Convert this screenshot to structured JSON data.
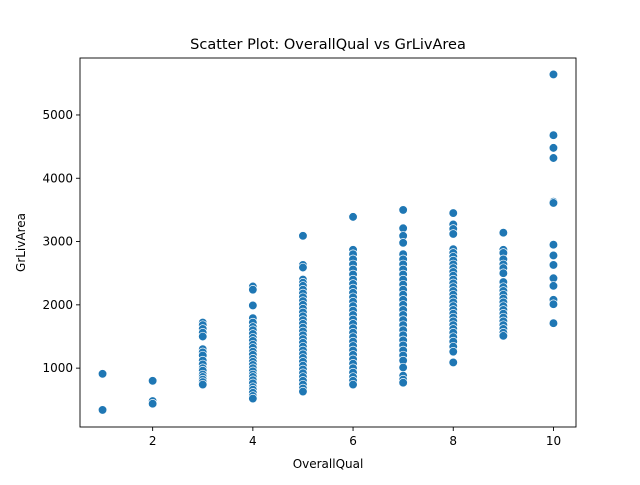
{
  "chart_data": {
    "type": "scatter",
    "title": "Scatter Plot: OverallQual vs GrLivArea",
    "xlabel": "OverallQual",
    "ylabel": "GrLivArea",
    "xlim": [
      0.55,
      10.45
    ],
    "ylim": [
      70,
      5900
    ],
    "xticks": [
      "2",
      "4",
      "6",
      "8",
      "10"
    ],
    "yticks": [
      "1000",
      "2000",
      "3000",
      "4000",
      "5000"
    ],
    "grid": false,
    "legend": "none",
    "marker_color": "#1f77b4",
    "marker_edge_color": "#ffffff",
    "points": [
      {
        "x": 1,
        "y": 910
      },
      {
        "x": 1,
        "y": 340
      },
      {
        "x": 2,
        "y": 800
      },
      {
        "x": 2,
        "y": 480
      },
      {
        "x": 2,
        "y": 438
      },
      {
        "x": 3,
        "y": 1720
      },
      {
        "x": 3,
        "y": 1680
      },
      {
        "x": 3,
        "y": 1620
      },
      {
        "x": 3,
        "y": 1560
      },
      {
        "x": 3,
        "y": 1500
      },
      {
        "x": 3,
        "y": 1300
      },
      {
        "x": 3,
        "y": 1250
      },
      {
        "x": 3,
        "y": 1200
      },
      {
        "x": 3,
        "y": 1120
      },
      {
        "x": 3,
        "y": 1060
      },
      {
        "x": 3,
        "y": 1000
      },
      {
        "x": 3,
        "y": 960
      },
      {
        "x": 3,
        "y": 900
      },
      {
        "x": 3,
        "y": 860
      },
      {
        "x": 3,
        "y": 820
      },
      {
        "x": 3,
        "y": 780
      },
      {
        "x": 3,
        "y": 740
      },
      {
        "x": 4,
        "y": 2290
      },
      {
        "x": 4,
        "y": 2240
      },
      {
        "x": 4,
        "y": 1990
      },
      {
        "x": 4,
        "y": 1790
      },
      {
        "x": 4,
        "y": 1720
      },
      {
        "x": 4,
        "y": 1650
      },
      {
        "x": 4,
        "y": 1600
      },
      {
        "x": 4,
        "y": 1540
      },
      {
        "x": 4,
        "y": 1480
      },
      {
        "x": 4,
        "y": 1430
      },
      {
        "x": 4,
        "y": 1370
      },
      {
        "x": 4,
        "y": 1320
      },
      {
        "x": 4,
        "y": 1260
      },
      {
        "x": 4,
        "y": 1210
      },
      {
        "x": 4,
        "y": 1150
      },
      {
        "x": 4,
        "y": 1100
      },
      {
        "x": 4,
        "y": 1050
      },
      {
        "x": 4,
        "y": 1000
      },
      {
        "x": 4,
        "y": 950
      },
      {
        "x": 4,
        "y": 900
      },
      {
        "x": 4,
        "y": 860
      },
      {
        "x": 4,
        "y": 810
      },
      {
        "x": 4,
        "y": 760
      },
      {
        "x": 4,
        "y": 700
      },
      {
        "x": 4,
        "y": 660
      },
      {
        "x": 4,
        "y": 610
      },
      {
        "x": 4,
        "y": 560
      },
      {
        "x": 4,
        "y": 520
      },
      {
        "x": 5,
        "y": 3090
      },
      {
        "x": 5,
        "y": 2630
      },
      {
        "x": 5,
        "y": 2590
      },
      {
        "x": 5,
        "y": 2400
      },
      {
        "x": 5,
        "y": 2350
      },
      {
        "x": 5,
        "y": 2300
      },
      {
        "x": 5,
        "y": 2240
      },
      {
        "x": 5,
        "y": 2180
      },
      {
        "x": 5,
        "y": 2120
      },
      {
        "x": 5,
        "y": 2060
      },
      {
        "x": 5,
        "y": 2000
      },
      {
        "x": 5,
        "y": 1940
      },
      {
        "x": 5,
        "y": 1880
      },
      {
        "x": 5,
        "y": 1820
      },
      {
        "x": 5,
        "y": 1760
      },
      {
        "x": 5,
        "y": 1700
      },
      {
        "x": 5,
        "y": 1640
      },
      {
        "x": 5,
        "y": 1580
      },
      {
        "x": 5,
        "y": 1520
      },
      {
        "x": 5,
        "y": 1460
      },
      {
        "x": 5,
        "y": 1400
      },
      {
        "x": 5,
        "y": 1340
      },
      {
        "x": 5,
        "y": 1280
      },
      {
        "x": 5,
        "y": 1220
      },
      {
        "x": 5,
        "y": 1160
      },
      {
        "x": 5,
        "y": 1100
      },
      {
        "x": 5,
        "y": 1040
      },
      {
        "x": 5,
        "y": 980
      },
      {
        "x": 5,
        "y": 920
      },
      {
        "x": 5,
        "y": 860
      },
      {
        "x": 5,
        "y": 800
      },
      {
        "x": 5,
        "y": 740
      },
      {
        "x": 5,
        "y": 680
      },
      {
        "x": 5,
        "y": 630
      },
      {
        "x": 6,
        "y": 3390
      },
      {
        "x": 6,
        "y": 2870
      },
      {
        "x": 6,
        "y": 2800
      },
      {
        "x": 6,
        "y": 2720
      },
      {
        "x": 6,
        "y": 2640
      },
      {
        "x": 6,
        "y": 2560
      },
      {
        "x": 6,
        "y": 2480
      },
      {
        "x": 6,
        "y": 2400
      },
      {
        "x": 6,
        "y": 2330
      },
      {
        "x": 6,
        "y": 2260
      },
      {
        "x": 6,
        "y": 2190
      },
      {
        "x": 6,
        "y": 2120
      },
      {
        "x": 6,
        "y": 2050
      },
      {
        "x": 6,
        "y": 1980
      },
      {
        "x": 6,
        "y": 1910
      },
      {
        "x": 6,
        "y": 1840
      },
      {
        "x": 6,
        "y": 1770
      },
      {
        "x": 6,
        "y": 1700
      },
      {
        "x": 6,
        "y": 1630
      },
      {
        "x": 6,
        "y": 1560
      },
      {
        "x": 6,
        "y": 1490
      },
      {
        "x": 6,
        "y": 1420
      },
      {
        "x": 6,
        "y": 1350
      },
      {
        "x": 6,
        "y": 1280
      },
      {
        "x": 6,
        "y": 1210
      },
      {
        "x": 6,
        "y": 1140
      },
      {
        "x": 6,
        "y": 1070
      },
      {
        "x": 6,
        "y": 1000
      },
      {
        "x": 6,
        "y": 930
      },
      {
        "x": 6,
        "y": 860
      },
      {
        "x": 6,
        "y": 800
      },
      {
        "x": 6,
        "y": 740
      },
      {
        "x": 7,
        "y": 3500
      },
      {
        "x": 7,
        "y": 3210
      },
      {
        "x": 7,
        "y": 3090
      },
      {
        "x": 7,
        "y": 2980
      },
      {
        "x": 7,
        "y": 2800
      },
      {
        "x": 7,
        "y": 2720
      },
      {
        "x": 7,
        "y": 2640
      },
      {
        "x": 7,
        "y": 2560
      },
      {
        "x": 7,
        "y": 2480
      },
      {
        "x": 7,
        "y": 2400
      },
      {
        "x": 7,
        "y": 2320
      },
      {
        "x": 7,
        "y": 2240
      },
      {
        "x": 7,
        "y": 2160
      },
      {
        "x": 7,
        "y": 2080
      },
      {
        "x": 7,
        "y": 2000
      },
      {
        "x": 7,
        "y": 1920
      },
      {
        "x": 7,
        "y": 1840
      },
      {
        "x": 7,
        "y": 1760
      },
      {
        "x": 7,
        "y": 1680
      },
      {
        "x": 7,
        "y": 1600
      },
      {
        "x": 7,
        "y": 1520
      },
      {
        "x": 7,
        "y": 1440
      },
      {
        "x": 7,
        "y": 1360
      },
      {
        "x": 7,
        "y": 1280
      },
      {
        "x": 7,
        "y": 1200
      },
      {
        "x": 7,
        "y": 1120
      },
      {
        "x": 7,
        "y": 1010
      },
      {
        "x": 7,
        "y": 880
      },
      {
        "x": 7,
        "y": 820
      },
      {
        "x": 7,
        "y": 770
      },
      {
        "x": 8,
        "y": 3450
      },
      {
        "x": 8,
        "y": 3270
      },
      {
        "x": 8,
        "y": 3200
      },
      {
        "x": 8,
        "y": 3120
      },
      {
        "x": 8,
        "y": 2880
      },
      {
        "x": 8,
        "y": 2820
      },
      {
        "x": 8,
        "y": 2760
      },
      {
        "x": 8,
        "y": 2700
      },
      {
        "x": 8,
        "y": 2640
      },
      {
        "x": 8,
        "y": 2580
      },
      {
        "x": 8,
        "y": 2520
      },
      {
        "x": 8,
        "y": 2460
      },
      {
        "x": 8,
        "y": 2400
      },
      {
        "x": 8,
        "y": 2340
      },
      {
        "x": 8,
        "y": 2280
      },
      {
        "x": 8,
        "y": 2220
      },
      {
        "x": 8,
        "y": 2160
      },
      {
        "x": 8,
        "y": 2100
      },
      {
        "x": 8,
        "y": 2040
      },
      {
        "x": 8,
        "y": 1980
      },
      {
        "x": 8,
        "y": 1920
      },
      {
        "x": 8,
        "y": 1860
      },
      {
        "x": 8,
        "y": 1800
      },
      {
        "x": 8,
        "y": 1740
      },
      {
        "x": 8,
        "y": 1680
      },
      {
        "x": 8,
        "y": 1620
      },
      {
        "x": 8,
        "y": 1560
      },
      {
        "x": 8,
        "y": 1490
      },
      {
        "x": 8,
        "y": 1420
      },
      {
        "x": 8,
        "y": 1340
      },
      {
        "x": 8,
        "y": 1260
      },
      {
        "x": 8,
        "y": 1090
      },
      {
        "x": 9,
        "y": 3140
      },
      {
        "x": 9,
        "y": 2870
      },
      {
        "x": 9,
        "y": 2820
      },
      {
        "x": 9,
        "y": 2720
      },
      {
        "x": 9,
        "y": 2640
      },
      {
        "x": 9,
        "y": 2580
      },
      {
        "x": 9,
        "y": 2500
      },
      {
        "x": 9,
        "y": 2360
      },
      {
        "x": 9,
        "y": 2280
      },
      {
        "x": 9,
        "y": 2220
      },
      {
        "x": 9,
        "y": 2160
      },
      {
        "x": 9,
        "y": 2100
      },
      {
        "x": 9,
        "y": 2040
      },
      {
        "x": 9,
        "y": 1980
      },
      {
        "x": 9,
        "y": 1920
      },
      {
        "x": 9,
        "y": 1860
      },
      {
        "x": 9,
        "y": 1800
      },
      {
        "x": 9,
        "y": 1740
      },
      {
        "x": 9,
        "y": 1680
      },
      {
        "x": 9,
        "y": 1620
      },
      {
        "x": 9,
        "y": 1560
      },
      {
        "x": 9,
        "y": 1510
      },
      {
        "x": 10,
        "y": 5640
      },
      {
        "x": 10,
        "y": 4680
      },
      {
        "x": 10,
        "y": 4480
      },
      {
        "x": 10,
        "y": 4320
      },
      {
        "x": 10,
        "y": 3630
      },
      {
        "x": 10,
        "y": 3610
      },
      {
        "x": 10,
        "y": 2950
      },
      {
        "x": 10,
        "y": 2780
      },
      {
        "x": 10,
        "y": 2630
      },
      {
        "x": 10,
        "y": 2420
      },
      {
        "x": 10,
        "y": 2300
      },
      {
        "x": 10,
        "y": 2080
      },
      {
        "x": 10,
        "y": 2010
      },
      {
        "x": 10,
        "y": 1710
      }
    ]
  }
}
